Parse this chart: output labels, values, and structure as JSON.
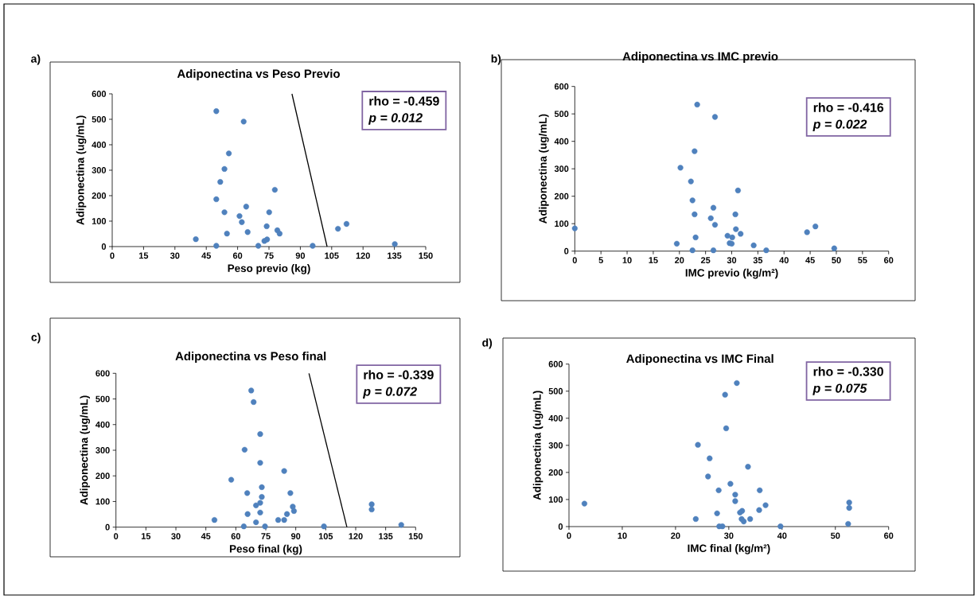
{
  "chart_data": [
    {
      "type": "scatter",
      "title": "Adiponectina  vs Peso Previo",
      "xlabel": "Peso previo (kg)",
      "ylabel": "Adiponectina (ug/mL)",
      "annotations": [
        "a)",
        "rho = -0.459",
        "p = 0.012"
      ],
      "marker": "circle",
      "xlim": [
        0,
        150
      ],
      "ylim": [
        0,
        600
      ],
      "xticks": [
        0,
        15,
        30,
        45,
        60,
        75,
        90,
        105,
        120,
        135,
        150
      ],
      "yticks": [
        0,
        100,
        200,
        300,
        400,
        500,
        600
      ],
      "series": [
        {
          "type": "scatter",
          "color": "#4f81bd",
          "x": [
            49.8,
            62.9,
            55.8,
            53.7,
            51.7,
            77.8,
            49.8,
            64.1,
            53.7,
            75.1,
            60.9,
            62.0,
            73.9,
            108.0,
            112.1,
            54.9,
            64.8,
            79.0,
            80.1,
            40.0,
            72.8,
            74.1,
            49.8,
            69.9,
            95.9,
            135.2
          ],
          "values": [
            532,
            491,
            366,
            305,
            254,
            223,
            186,
            157,
            135,
            135,
            120,
            96,
            80,
            70,
            89,
            51,
            57,
            64,
            51,
            29,
            22,
            28,
            3,
            3,
            3,
            10
          ]
        },
        {
          "type": "line",
          "marker": "none",
          "color": "#000000",
          "x": [
            86.0,
            102.8
          ],
          "values": [
            600,
            0
          ]
        }
      ]
    },
    {
      "type": "scatter",
      "title": "Adiponectina  vs IMC previo",
      "xlabel": "IMC previo (kg/m²)",
      "ylabel": "Adiponectina (ug/mL)",
      "annotations": [
        "b)",
        "rho = -0.416",
        "p = 0.022"
      ],
      "marker": "circle",
      "xlim": [
        0,
        60
      ],
      "ylim": [
        0,
        600
      ],
      "xticks": [
        0,
        5,
        10,
        15,
        20,
        25,
        30,
        35,
        40,
        45,
        50,
        55,
        60
      ],
      "yticks": [
        0,
        100,
        200,
        300,
        400,
        500,
        600
      ],
      "series": [
        {
          "type": "scatter",
          "color": "#4f81bd",
          "x": [
            0,
            23.4,
            26.8,
            22.9,
            20.2,
            22.2,
            31.2,
            22.5,
            26.5,
            22.9,
            30.7,
            26.0,
            26.8,
            30.8,
            31.7,
            29.2,
            30.1,
            23.1,
            44.4,
            46.0,
            19.5,
            29.6,
            30.0,
            34.2,
            22.5,
            26.5,
            36.6,
            49.6
          ],
          "values": [
            83,
            534,
            489,
            364,
            304,
            254,
            221,
            185,
            158,
            134,
            134,
            120,
            96,
            80,
            63,
            56,
            50,
            50,
            69,
            90,
            27,
            29,
            27,
            21,
            3,
            3,
            3,
            10
          ]
        }
      ]
    },
    {
      "type": "scatter",
      "title": "Adiponectina  vs Peso final",
      "xlabel": "Peso final (kg)",
      "ylabel": "Adiponectina (ug/mL)",
      "annotations": [
        "c)",
        "rho = -0.339",
        "p = 0.072"
      ],
      "marker": "circle",
      "xlim": [
        0,
        150
      ],
      "ylim": [
        0,
        600
      ],
      "xticks": [
        0,
        15,
        30,
        45,
        60,
        75,
        90,
        105,
        120,
        135,
        150
      ],
      "yticks": [
        0,
        100,
        200,
        300,
        400,
        500,
        600
      ],
      "series": [
        {
          "type": "scatter",
          "color": "#4f81bd",
          "x": [
            67.7,
            68.9,
            72.2,
            64.4,
            72.2,
            84.2,
            57.7,
            73.0,
            65.7,
            87.3,
            73.0,
            72.2,
            70.1,
            88.5,
            89.1,
            72.2,
            85.6,
            65.9,
            128.0,
            128.0,
            49.3,
            81.2,
            84.2,
            70.1,
            64.0,
            74.6,
            104.1,
            142.8
          ],
          "values": [
            533,
            488,
            363,
            302,
            251,
            219,
            185,
            156,
            133,
            133,
            118,
            95,
            85,
            80,
            63,
            57,
            51,
            51,
            89,
            69,
            28,
            28,
            28,
            19,
            3,
            3,
            3,
            9
          ]
        },
        {
          "type": "line",
          "marker": "none",
          "color": "#000000",
          "x": [
            96.6,
            115.6
          ],
          "values": [
            600,
            0
          ]
        }
      ]
    },
    {
      "type": "scatter",
      "title": "Adiponectina  vs IMC Final",
      "xlabel": "IMC final (kg/m²)",
      "ylabel": "Adiponectina (ug/mL)",
      "annotations": [
        "d)",
        "rho = -0.330",
        "p = 0.075"
      ],
      "marker": "circle",
      "xlim": [
        0,
        60
      ],
      "ylim": [
        0,
        600
      ],
      "xticks": [
        0,
        10,
        20,
        30,
        40,
        50,
        60
      ],
      "yticks": [
        0,
        100,
        200,
        300,
        400,
        500,
        600
      ],
      "series": [
        {
          "type": "scatter",
          "color": "#4f81bd",
          "x": [
            2.9,
            31.5,
            29.3,
            29.5,
            24.2,
            26.4,
            33.6,
            26.1,
            30.3,
            28.1,
            35.8,
            31.2,
            31.2,
            36.9,
            35.7,
            32.5,
            32.1,
            27.8,
            52.6,
            52.6,
            52.4,
            23.8,
            32.4,
            32.8,
            34.0,
            28.2,
            28.8,
            39.7
          ],
          "values": [
            85,
            530,
            487,
            363,
            302,
            252,
            221,
            185,
            158,
            134,
            134,
            118,
            94,
            79,
            61,
            58,
            52,
            49,
            89,
            69,
            10,
            28,
            28,
            19,
            28,
            1,
            1,
            1
          ]
        }
      ]
    }
  ]
}
